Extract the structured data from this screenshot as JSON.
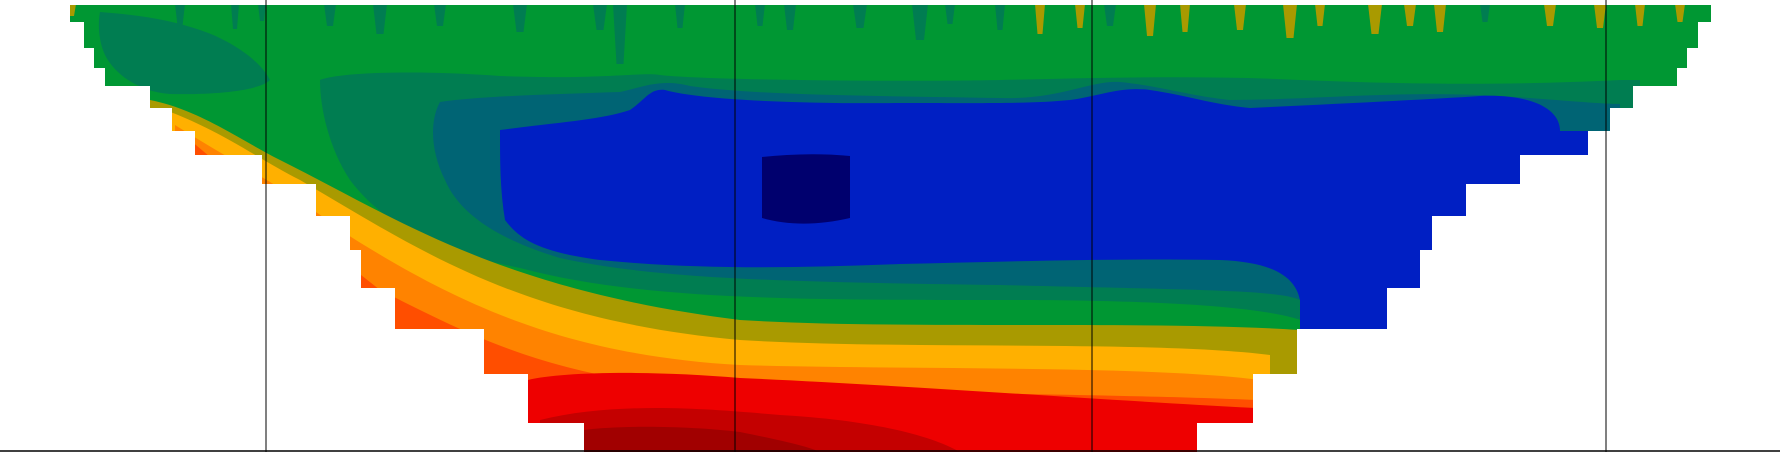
{
  "chart_data": {
    "type": "heatmap",
    "title": "",
    "xlabel": "",
    "ylabel": "",
    "legend": "none",
    "grid": "vertical lines",
    "colorscale": [
      {
        "level": 0,
        "color": "#00006e"
      },
      {
        "level": 1,
        "color": "#001fc3"
      },
      {
        "level": 2,
        "color": "#006474"
      },
      {
        "level": 3,
        "color": "#007d51"
      },
      {
        "level": 4,
        "color": "#009733"
      },
      {
        "level": 5,
        "color": "#a99a00"
      },
      {
        "level": 6,
        "color": "#ffb000"
      },
      {
        "level": 7,
        "color": "#ff8300"
      },
      {
        "level": 8,
        "color": "#ff4e00"
      },
      {
        "level": 9,
        "color": "#ee0000"
      },
      {
        "level": 10,
        "color": "#c40000"
      },
      {
        "level": 11,
        "color": "#a10000"
      }
    ]
  }
}
